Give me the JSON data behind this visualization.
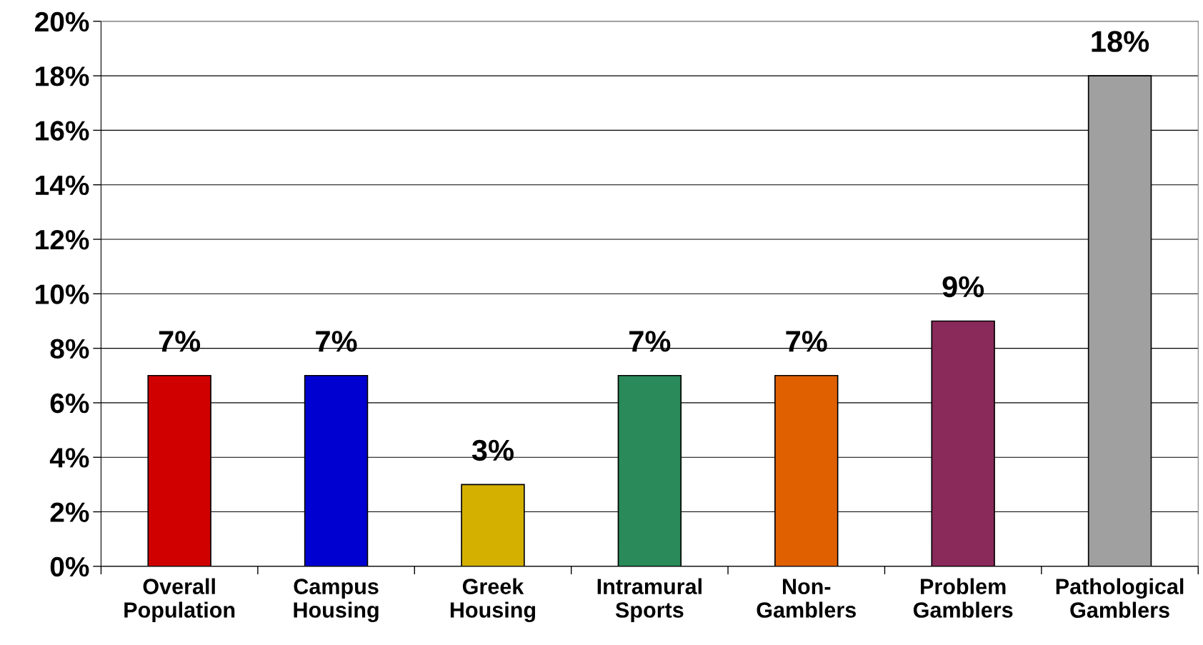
{
  "chart_data": {
    "type": "bar",
    "categories": [
      "Overall\nPopulation",
      "Campus\nHousing",
      "Greek\nHousing",
      "Intramural\nSports",
      "Non-\nGamblers",
      "Problem\nGamblers",
      "Pathological\nGamblers"
    ],
    "values": [
      7,
      7,
      3,
      7,
      7,
      9,
      18
    ],
    "value_labels": [
      "7%",
      "7%",
      "3%",
      "7%",
      "7%",
      "9%",
      "18%"
    ],
    "colors": [
      "#d00000",
      "#0000d0",
      "#d4b000",
      "#2a8a5a",
      "#e06000",
      "#8a2a5a",
      "#a0a0a0"
    ],
    "ylim": [
      0,
      20
    ],
    "yticks": [
      {
        "value": 0,
        "label": "0%"
      },
      {
        "value": 2,
        "label": "2%"
      },
      {
        "value": 4,
        "label": "4%"
      },
      {
        "value": 6,
        "label": "6%"
      },
      {
        "value": 8,
        "label": "8%"
      },
      {
        "value": 10,
        "label": "10%"
      },
      {
        "value": 12,
        "label": "12%"
      },
      {
        "value": 14,
        "label": "14%"
      },
      {
        "value": 16,
        "label": "16%"
      },
      {
        "value": 18,
        "label": "18%"
      },
      {
        "value": 20,
        "label": "20%"
      }
    ],
    "grid": "y"
  }
}
